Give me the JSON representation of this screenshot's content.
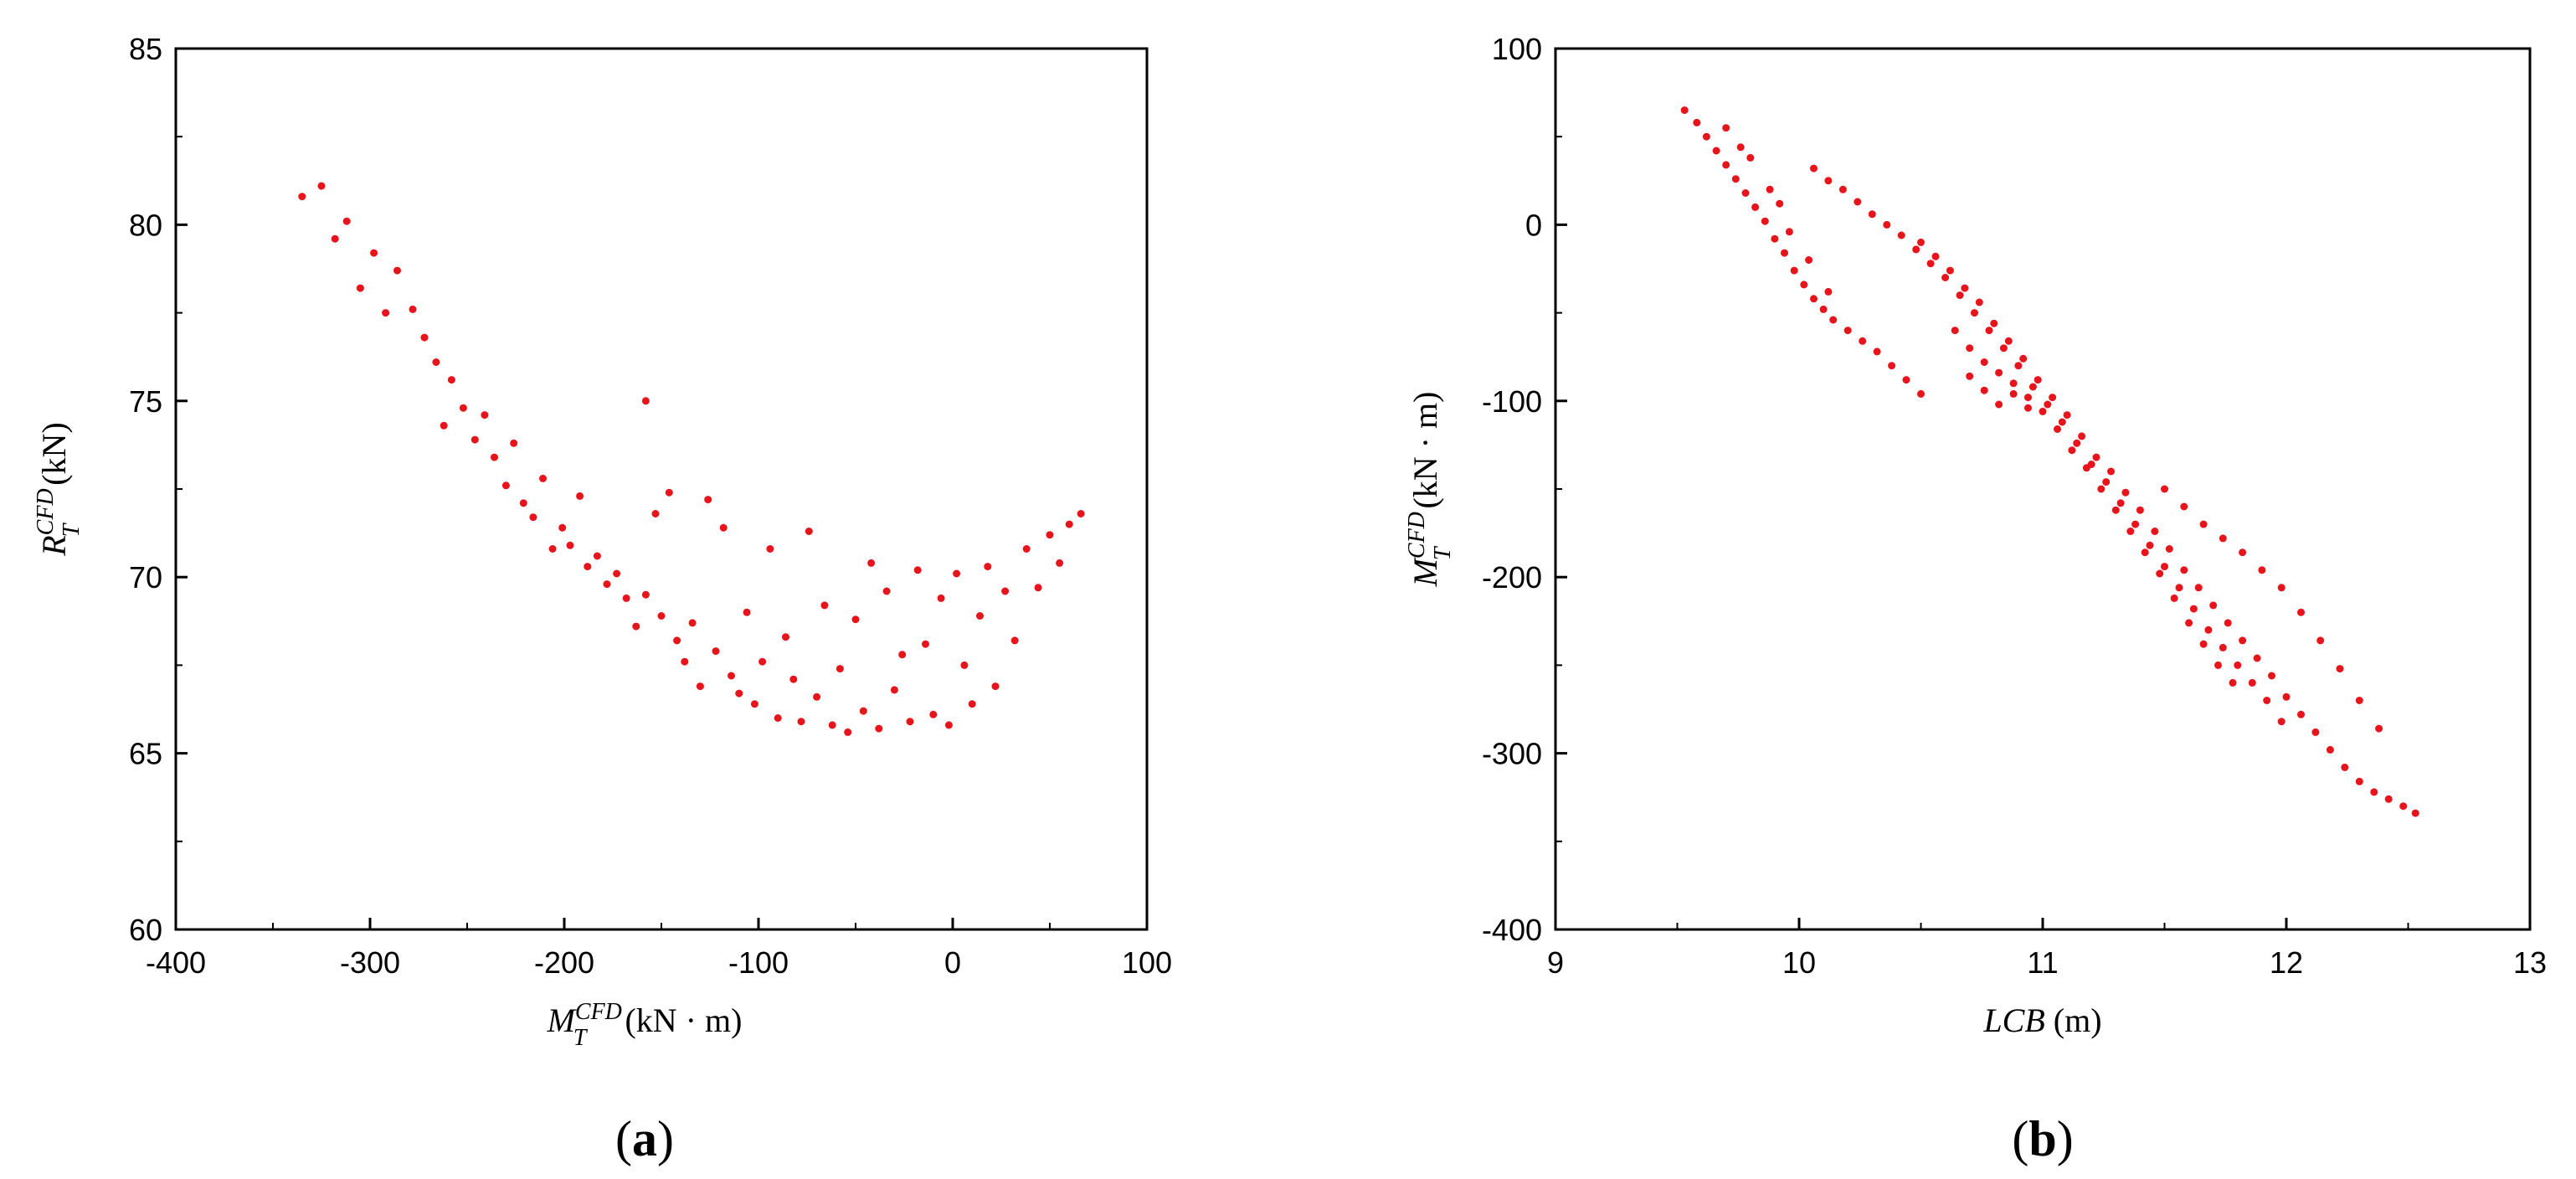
{
  "chart_data": [
    {
      "type": "scatter",
      "panel_label": "a",
      "xlabel": {
        "var": "M",
        "sup": "CFD",
        "sub": "T",
        "unit": "(kN · m)"
      },
      "ylabel": {
        "var": "R",
        "sup": "CFD",
        "sub": "T",
        "unit": "(kN)"
      },
      "xlim": [
        -400,
        100
      ],
      "ylim": [
        60,
        85
      ],
      "xticks": [
        "-400",
        "-300",
        "-200",
        "-100",
        "0",
        "100"
      ],
      "yticks": [
        "60",
        "65",
        "70",
        "75",
        "80",
        "85"
      ],
      "marker_color": "#e8141b",
      "grid": false,
      "series": [
        {
          "values": [
            [
              -335,
              80.8
            ],
            [
              -325,
              81.1
            ],
            [
              -318,
              79.6
            ],
            [
              -312,
              80.1
            ],
            [
              -305,
              78.2
            ],
            [
              -298,
              79.2
            ],
            [
              -292,
              77.5
            ],
            [
              -286,
              78.7
            ],
            [
              -278,
              77.6
            ],
            [
              -272,
              76.8
            ],
            [
              -266,
              76.1
            ],
            [
              -262,
              74.3
            ],
            [
              -258,
              75.6
            ],
            [
              -252,
              74.8
            ],
            [
              -246,
              73.9
            ],
            [
              -241,
              74.6
            ],
            [
              -236,
              73.4
            ],
            [
              -230,
              72.6
            ],
            [
              -226,
              73.8
            ],
            [
              -221,
              72.1
            ],
            [
              -216,
              71.7
            ],
            [
              -211,
              72.8
            ],
            [
              -206,
              70.8
            ],
            [
              -201,
              71.4
            ],
            [
              -197,
              70.9
            ],
            [
              -192,
              72.3
            ],
            [
              -188,
              70.3
            ],
            [
              -183,
              70.6
            ],
            [
              -178,
              69.8
            ],
            [
              -173,
              70.1
            ],
            [
              -168,
              69.4
            ],
            [
              -163,
              68.6
            ],
            [
              -158,
              75.0
            ],
            [
              -158,
              69.5
            ],
            [
              -153,
              71.8
            ],
            [
              -150,
              68.9
            ],
            [
              -146,
              72.4
            ],
            [
              -142,
              68.2
            ],
            [
              -138,
              67.6
            ],
            [
              -134,
              68.7
            ],
            [
              -130,
              66.9
            ],
            [
              -126,
              72.2
            ],
            [
              -122,
              67.9
            ],
            [
              -118,
              71.4
            ],
            [
              -114,
              67.2
            ],
            [
              -110,
              66.7
            ],
            [
              -106,
              69.0
            ],
            [
              -102,
              66.4
            ],
            [
              -98,
              67.6
            ],
            [
              -94,
              70.8
            ],
            [
              -90,
              66.0
            ],
            [
              -86,
              68.3
            ],
            [
              -82,
              67.1
            ],
            [
              -78,
              65.9
            ],
            [
              -74,
              71.3
            ],
            [
              -70,
              66.6
            ],
            [
              -66,
              69.2
            ],
            [
              -62,
              65.8
            ],
            [
              -58,
              67.4
            ],
            [
              -54,
              65.6
            ],
            [
              -50,
              68.8
            ],
            [
              -46,
              66.2
            ],
            [
              -42,
              70.4
            ],
            [
              -38,
              65.7
            ],
            [
              -34,
              69.6
            ],
            [
              -30,
              66.8
            ],
            [
              -26,
              67.8
            ],
            [
              -22,
              65.9
            ],
            [
              -18,
              70.2
            ],
            [
              -14,
              68.1
            ],
            [
              -10,
              66.1
            ],
            [
              -6,
              69.4
            ],
            [
              -2,
              65.8
            ],
            [
              2,
              70.1
            ],
            [
              6,
              67.5
            ],
            [
              10,
              66.4
            ],
            [
              14,
              68.9
            ],
            [
              18,
              70.3
            ],
            [
              22,
              66.9
            ],
            [
              27,
              69.6
            ],
            [
              32,
              68.2
            ],
            [
              38,
              70.8
            ],
            [
              44,
              69.7
            ],
            [
              50,
              71.2
            ],
            [
              55,
              70.4
            ],
            [
              60,
              71.5
            ],
            [
              66,
              71.8
            ]
          ]
        }
      ]
    },
    {
      "type": "scatter",
      "panel_label": "b",
      "xlabel": {
        "var": "LCB",
        "unit": "(m)"
      },
      "ylabel": {
        "var": "M",
        "sup": "CFD",
        "sub": "T",
        "unit": "(kN · m)"
      },
      "xlim": [
        9,
        13
      ],
      "ylim": [
        -400,
        100
      ],
      "xticks": [
        "9",
        "10",
        "11",
        "12",
        "13"
      ],
      "yticks": [
        "-400",
        "-300",
        "-200",
        "-100",
        "0",
        "100"
      ],
      "marker_color": "#e8141b",
      "grid": false,
      "series": [
        {
          "values": [
            [
              9.53,
              65
            ],
            [
              9.58,
              58
            ],
            [
              9.62,
              50
            ],
            [
              9.66,
              42
            ],
            [
              9.7,
              34
            ],
            [
              9.74,
              26
            ],
            [
              9.78,
              18
            ],
            [
              9.82,
              10
            ],
            [
              9.86,
              2
            ],
            [
              9.9,
              -8
            ],
            [
              9.94,
              -16
            ],
            [
              9.98,
              -26
            ],
            [
              10.02,
              -34
            ],
            [
              10.06,
              -42
            ],
            [
              10.1,
              -48
            ],
            [
              10.14,
              -54
            ],
            [
              10.2,
              -60
            ],
            [
              10.26,
              -66
            ],
            [
              10.32,
              -72
            ],
            [
              10.38,
              -80
            ],
            [
              10.44,
              -88
            ],
            [
              10.5,
              -96
            ],
            [
              9.7,
              55
            ],
            [
              9.76,
              44
            ],
            [
              9.8,
              38
            ],
            [
              9.88,
              20
            ],
            [
              9.92,
              12
            ],
            [
              9.96,
              -4
            ],
            [
              10.04,
              -20
            ],
            [
              10.12,
              -38
            ],
            [
              10.06,
              32
            ],
            [
              10.12,
              25
            ],
            [
              10.18,
              20
            ],
            [
              10.24,
              13
            ],
            [
              10.3,
              6
            ],
            [
              10.36,
              0
            ],
            [
              10.42,
              -6
            ],
            [
              10.48,
              -14
            ],
            [
              10.54,
              -22
            ],
            [
              10.6,
              -30
            ],
            [
              10.66,
              -40
            ],
            [
              10.72,
              -50
            ],
            [
              10.78,
              -60
            ],
            [
              10.84,
              -70
            ],
            [
              10.9,
              -80
            ],
            [
              10.96,
              -92
            ],
            [
              11.02,
              -102
            ],
            [
              11.08,
              -112
            ],
            [
              11.14,
              -124
            ],
            [
              11.2,
              -136
            ],
            [
              11.26,
              -146
            ],
            [
              11.32,
              -158
            ],
            [
              11.38,
              -170
            ],
            [
              11.44,
              -182
            ],
            [
              11.5,
              -194
            ],
            [
              11.56,
              -206
            ],
            [
              11.62,
              -218
            ],
            [
              11.68,
              -230
            ],
            [
              11.74,
              -240
            ],
            [
              11.8,
              -250
            ],
            [
              11.86,
              -260
            ],
            [
              11.92,
              -270
            ],
            [
              11.98,
              -282
            ],
            [
              10.5,
              -10
            ],
            [
              10.56,
              -18
            ],
            [
              10.62,
              -26
            ],
            [
              10.68,
              -36
            ],
            [
              10.74,
              -44
            ],
            [
              10.8,
              -56
            ],
            [
              10.86,
              -66
            ],
            [
              10.92,
              -76
            ],
            [
              10.98,
              -88
            ],
            [
              11.04,
              -98
            ],
            [
              11.1,
              -108
            ],
            [
              11.16,
              -120
            ],
            [
              11.22,
              -132
            ],
            [
              11.28,
              -140
            ],
            [
              11.34,
              -152
            ],
            [
              11.4,
              -162
            ],
            [
              11.46,
              -174
            ],
            [
              11.52,
              -184
            ],
            [
              11.58,
              -196
            ],
            [
              11.64,
              -206
            ],
            [
              11.7,
              -216
            ],
            [
              11.76,
              -226
            ],
            [
              11.82,
              -236
            ],
            [
              11.88,
              -246
            ],
            [
              11.94,
              -256
            ],
            [
              12.0,
              -268
            ],
            [
              12.06,
              -278
            ],
            [
              12.12,
              -288
            ],
            [
              12.18,
              -298
            ],
            [
              12.24,
              -308
            ],
            [
              12.3,
              -316
            ],
            [
              12.36,
              -322
            ],
            [
              12.42,
              -326
            ],
            [
              12.48,
              -330
            ],
            [
              12.53,
              -334
            ],
            [
              11.5,
              -150
            ],
            [
              11.58,
              -160
            ],
            [
              11.66,
              -170
            ],
            [
              11.74,
              -178
            ],
            [
              11.82,
              -186
            ],
            [
              11.9,
              -196
            ],
            [
              11.98,
              -206
            ],
            [
              12.06,
              -220
            ],
            [
              12.14,
              -236
            ],
            [
              12.22,
              -252
            ],
            [
              12.3,
              -270
            ],
            [
              12.38,
              -286
            ],
            [
              10.7,
              -86
            ],
            [
              10.76,
              -94
            ],
            [
              10.82,
              -102
            ],
            [
              10.88,
              -90
            ],
            [
              10.94,
              -98
            ],
            [
              11.0,
              -106
            ],
            [
              11.06,
              -116
            ],
            [
              11.12,
              -128
            ],
            [
              11.18,
              -138
            ],
            [
              11.24,
              -150
            ],
            [
              11.3,
              -162
            ],
            [
              11.36,
              -174
            ],
            [
              11.42,
              -186
            ],
            [
              11.48,
              -198
            ],
            [
              11.54,
              -212
            ],
            [
              11.6,
              -226
            ],
            [
              11.66,
              -238
            ],
            [
              11.72,
              -250
            ],
            [
              11.78,
              -260
            ],
            [
              10.64,
              -60
            ],
            [
              10.7,
              -70
            ],
            [
              10.76,
              -78
            ],
            [
              10.82,
              -84
            ],
            [
              10.88,
              -96
            ],
            [
              10.94,
              -104
            ]
          ]
        }
      ]
    }
  ]
}
